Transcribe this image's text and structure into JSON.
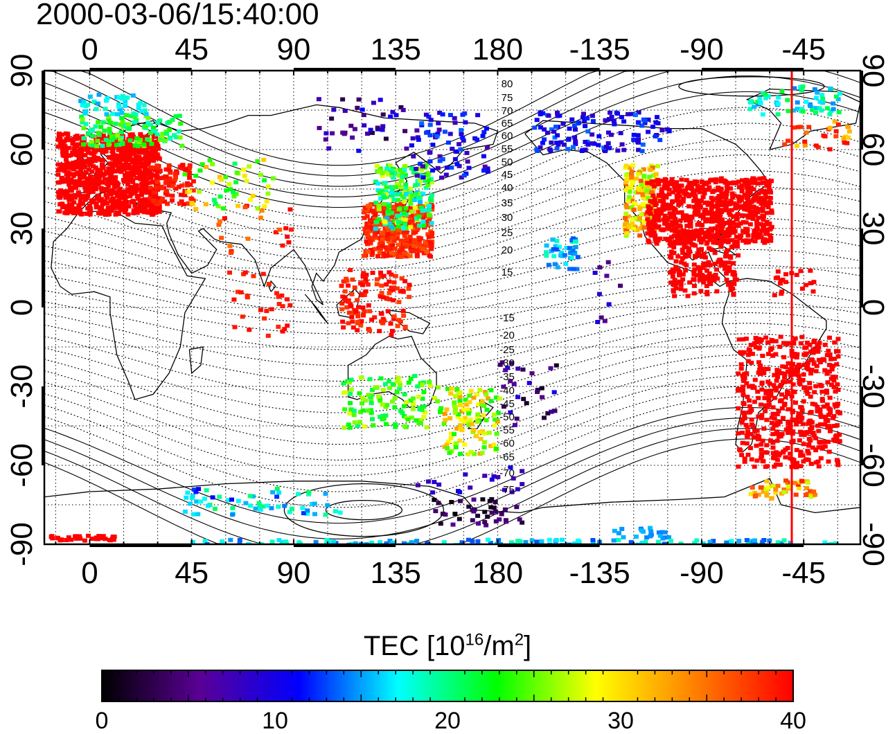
{
  "timestamp": "2000-03-06/15:40:00",
  "map": {
    "projection": "equirectangular (geographic longitude/latitude)",
    "lon_range": [
      -20,
      340
    ],
    "lat_range": [
      -90,
      90
    ],
    "top_lon_ticks": [
      "0",
      "45",
      "90",
      "135",
      "180",
      "-135",
      "-90",
      "-45"
    ],
    "bottom_lon_ticks": [
      "0",
      "45",
      "90",
      "135",
      "180",
      "-135",
      "-90",
      "-45"
    ],
    "left_lat_ticks": [
      "90",
      "60",
      "30",
      "0",
      "-30",
      "-60",
      "-90"
    ],
    "right_lat_ticks": [
      "90",
      "60",
      "30",
      "0",
      "-30",
      "-60",
      "-90"
    ],
    "grid": "dotted, every 15 degrees",
    "magnetic_contour_labels": [
      "80",
      "75",
      "70",
      "65",
      "60",
      "55",
      "50",
      "45",
      "40",
      "35",
      "30",
      "25",
      "20",
      "15",
      "-15",
      "-20",
      "-25",
      "-30",
      "-35",
      "-40",
      "-45",
      "-50",
      "-55",
      "-60",
      "-65",
      "-70",
      "-75"
    ],
    "terminator_color": "#ff0000"
  },
  "colorbar": {
    "title_main": "TEC  [10",
    "title_sup1": "16",
    "title_mid": "/m",
    "title_sup2": "2",
    "title_end": "]",
    "range": [
      0,
      40
    ],
    "tick_labels": [
      "0",
      "10",
      "20",
      "30",
      "40"
    ],
    "colormap_stops": [
      "#000000",
      "#5a0096",
      "#0000ff",
      "#00ffff",
      "#00ff00",
      "#ffff00",
      "#ff8000",
      "#ff0000"
    ]
  },
  "tec_regions": [
    {
      "name": "europe",
      "value": 40
    },
    {
      "name": "north-america",
      "value": 40
    },
    {
      "name": "south-america",
      "value": 40
    },
    {
      "name": "east-asia",
      "value": 38
    },
    {
      "name": "japan",
      "value": 15
    },
    {
      "name": "arctic-europe",
      "value": 22
    },
    {
      "name": "australia",
      "value": 24
    },
    {
      "name": "new-zealand",
      "value": 28
    },
    {
      "name": "antarctica-pacific",
      "value": 9
    },
    {
      "name": "antarctica-indian",
      "value": 16
    },
    {
      "name": "canada-arctic",
      "value": 11
    }
  ]
}
